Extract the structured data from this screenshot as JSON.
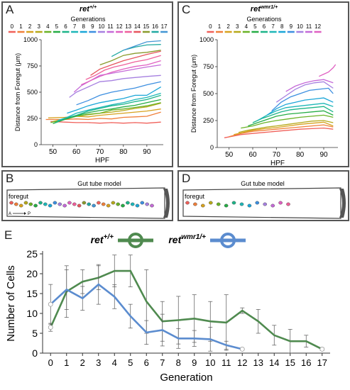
{
  "panels": {
    "A": {
      "letter": "A",
      "genotype_base": "ret",
      "genotype_sup": "+/+",
      "legend_title": "Generations"
    },
    "B": {
      "letter": "B",
      "model_title": "Gut tube model",
      "foregut_label": "foregut",
      "axis_a": "A",
      "axis_p": "P"
    },
    "C": {
      "letter": "C",
      "genotype_base": "ret",
      "genotype_sup": "wmr1/+",
      "legend_title": "Generations"
    },
    "D": {
      "letter": "D",
      "model_title": "Gut tube model",
      "foregut_label": "foregut"
    },
    "E": {
      "letter": "E"
    }
  },
  "colors": {
    "generations": [
      "#f0605a",
      "#f07f3a",
      "#d7a21e",
      "#b6a91b",
      "#6ab327",
      "#26ad45",
      "#1db589",
      "#1eb7b8",
      "#1ba6d8",
      "#3d8fe0",
      "#a680e0",
      "#c56ad8",
      "#e060c2",
      "#ef5f9a",
      "#e6555d",
      "#8a9b2c",
      "#21a9a2",
      "#4396d4"
    ],
    "ret_wt": "#4f8a4f",
    "ret_mut": "#5b8ccf"
  },
  "chart_data": [
    {
      "id": "A",
      "type": "line",
      "title": "ret+/+",
      "xlabel": "HPF",
      "ylabel": "Distance from Foregut (μm)",
      "xlim": [
        45,
        97
      ],
      "ylim": [
        0,
        1000
      ],
      "xticks": [
        50,
        60,
        70,
        80,
        90
      ],
      "yticks": [
        0,
        250,
        500,
        750,
        1000
      ],
      "legend_title": "Generations",
      "legend_labels": [
        "0",
        "1",
        "2",
        "3",
        "4",
        "5",
        "6",
        "7",
        "8",
        "9",
        "10",
        "11",
        "12",
        "13",
        "14",
        "15",
        "16",
        "17"
      ],
      "series": [
        {
          "gen": 0,
          "x": [
            49,
            55,
            60,
            65,
            70,
            75,
            80,
            85,
            90,
            96
          ],
          "y": [
            220,
            215,
            210,
            210,
            205,
            210,
            205,
            210,
            205,
            215
          ]
        },
        {
          "gen": 1,
          "x": [
            47,
            55,
            60,
            65,
            70,
            75,
            80,
            85,
            90,
            96
          ],
          "y": [
            240,
            240,
            245,
            240,
            250,
            245,
            260,
            265,
            270,
            310
          ]
        },
        {
          "gen": 2,
          "x": [
            48,
            55,
            60,
            65,
            70,
            75,
            80,
            85,
            90,
            96
          ],
          "y": [
            255,
            260,
            270,
            265,
            280,
            290,
            300,
            310,
            320,
            340
          ]
        },
        {
          "gen": 3,
          "x": [
            50,
            55,
            60,
            65,
            70,
            75,
            80,
            85,
            90,
            96
          ],
          "y": [
            220,
            245,
            270,
            285,
            300,
            310,
            325,
            345,
            360,
            395
          ]
        },
        {
          "gen": 4,
          "x": [
            49,
            55,
            60,
            65,
            70,
            75,
            80,
            85,
            90,
            96
          ],
          "y": [
            210,
            240,
            270,
            290,
            300,
            330,
            340,
            355,
            370,
            400
          ]
        },
        {
          "gen": 5,
          "x": [
            50,
            55,
            60,
            65,
            70,
            75,
            80,
            85,
            90,
            96
          ],
          "y": [
            200,
            240,
            275,
            305,
            325,
            340,
            360,
            375,
            400,
            430
          ]
        },
        {
          "gen": 6,
          "x": [
            51,
            55,
            60,
            65,
            70,
            75,
            80,
            85,
            90,
            96
          ],
          "y": [
            210,
            250,
            280,
            320,
            345,
            370,
            385,
            410,
            430,
            470
          ]
        },
        {
          "gen": 7,
          "x": [
            52,
            56,
            60,
            65,
            70,
            75,
            80,
            85,
            90,
            96
          ],
          "y": [
            230,
            260,
            300,
            330,
            355,
            380,
            400,
            430,
            450,
            490
          ]
        },
        {
          "gen": 8,
          "x": [
            56,
            60,
            65,
            70,
            75,
            80,
            85,
            90,
            96
          ],
          "y": [
            300,
            330,
            370,
            400,
            420,
            440,
            470,
            470,
            550
          ]
        },
        {
          "gen": 9,
          "x": [
            60,
            65,
            70,
            75,
            80,
            85,
            90,
            96
          ],
          "y": [
            380,
            420,
            470,
            500,
            520,
            540,
            570,
            600
          ]
        },
        {
          "gen": 10,
          "x": [
            57,
            60,
            65,
            70,
            75,
            80,
            85,
            90,
            96
          ],
          "y": [
            450,
            500,
            550,
            600,
            610,
            630,
            640,
            650,
            660
          ]
        },
        {
          "gen": 11,
          "x": [
            59,
            62,
            66,
            70,
            75,
            80,
            85,
            90,
            96
          ],
          "y": [
            500,
            560,
            610,
            660,
            680,
            700,
            720,
            740,
            760
          ]
        },
        {
          "gen": 12,
          "x": [
            62,
            65,
            70,
            75,
            80,
            85,
            90,
            96
          ],
          "y": [
            570,
            600,
            650,
            690,
            720,
            745,
            760,
            800
          ]
        },
        {
          "gen": 13,
          "x": [
            64,
            68,
            72,
            76,
            80,
            85,
            90,
            96
          ],
          "y": [
            620,
            660,
            710,
            740,
            760,
            790,
            810,
            850
          ]
        },
        {
          "gen": 14,
          "x": [
            66,
            70,
            75,
            80,
            85,
            90,
            96
          ],
          "y": [
            660,
            720,
            760,
            800,
            830,
            860,
            890
          ]
        },
        {
          "gen": 15,
          "x": [
            70,
            75,
            80,
            85,
            90,
            96
          ],
          "y": [
            760,
            800,
            850,
            870,
            880,
            900
          ]
        },
        {
          "gen": 16,
          "x": [
            75,
            80,
            85,
            90,
            96
          ],
          "y": [
            840,
            900,
            930,
            950,
            955
          ]
        },
        {
          "gen": 17,
          "x": [
            80,
            85,
            90,
            96
          ],
          "y": [
            900,
            940,
            980,
            990
          ]
        }
      ]
    },
    {
      "id": "C",
      "type": "line",
      "title": "retwmr1/+",
      "xlabel": "HPF",
      "ylabel": "Distance from Foregut (μm)",
      "xlim": [
        45,
        96
      ],
      "ylim": [
        0,
        1000
      ],
      "xticks": [
        50,
        60,
        70,
        80,
        90
      ],
      "yticks": [
        0,
        250,
        500,
        750,
        1000
      ],
      "legend_title": "Generations",
      "legend_labels": [
        "0",
        "1",
        "2",
        "3",
        "4",
        "5",
        "6",
        "7",
        "8",
        "9",
        "10",
        "11",
        "12"
      ],
      "series": [
        {
          "gen": 0,
          "x": [
            48,
            55,
            60,
            65,
            70,
            75,
            80,
            85,
            90,
            94
          ],
          "y": [
            90,
            120,
            130,
            140,
            150,
            160,
            170,
            175,
            180,
            170
          ]
        },
        {
          "gen": 1,
          "x": [
            50,
            55,
            60,
            65,
            70,
            75,
            80,
            85,
            90,
            94
          ],
          "y": [
            100,
            130,
            150,
            160,
            170,
            180,
            190,
            200,
            210,
            190
          ]
        },
        {
          "gen": 2,
          "x": [
            52,
            56,
            60,
            65,
            70,
            75,
            80,
            85,
            90,
            94
          ],
          "y": [
            120,
            140,
            160,
            175,
            185,
            200,
            215,
            225,
            235,
            200
          ]
        },
        {
          "gen": 3,
          "x": [
            54,
            58,
            62,
            66,
            70,
            75,
            80,
            85,
            90,
            94
          ],
          "y": [
            140,
            160,
            175,
            190,
            200,
            215,
            230,
            245,
            250,
            230
          ]
        },
        {
          "gen": 4,
          "x": [
            55,
            60,
            65,
            70,
            75,
            80,
            85,
            90,
            94
          ],
          "y": [
            180,
            200,
            230,
            250,
            265,
            280,
            290,
            300,
            280
          ]
        },
        {
          "gen": 5,
          "x": [
            58,
            62,
            66,
            70,
            75,
            80,
            85,
            90,
            94
          ],
          "y": [
            200,
            230,
            260,
            290,
            310,
            320,
            330,
            340,
            300
          ]
        },
        {
          "gen": 6,
          "x": [
            60,
            64,
            68,
            72,
            76,
            80,
            85,
            90,
            94
          ],
          "y": [
            230,
            270,
            300,
            330,
            350,
            360,
            370,
            380,
            330
          ]
        },
        {
          "gen": 7,
          "x": [
            62,
            66,
            70,
            74,
            78,
            82,
            86,
            90,
            94
          ],
          "y": [
            250,
            300,
            340,
            370,
            380,
            390,
            400,
            410,
            380
          ]
        },
        {
          "gen": 8,
          "x": [
            66,
            70,
            74,
            78,
            82,
            86,
            90,
            94
          ],
          "y": [
            300,
            360,
            400,
            420,
            440,
            450,
            460,
            420
          ]
        },
        {
          "gen": 9,
          "x": [
            68,
            72,
            76,
            80,
            84,
            88,
            92,
            94
          ],
          "y": [
            340,
            420,
            470,
            500,
            530,
            540,
            550,
            500
          ]
        },
        {
          "gen": 10,
          "x": [
            70,
            74,
            78,
            82,
            86,
            90,
            94
          ],
          "y": [
            420,
            480,
            540,
            580,
            600,
            610,
            550
          ]
        },
        {
          "gen": 11,
          "x": [
            74,
            78,
            82,
            86,
            90,
            94
          ],
          "y": [
            520,
            570,
            600,
            620,
            630,
            600
          ]
        },
        {
          "gen": 12,
          "x": [
            88,
            90,
            92,
            94,
            95
          ],
          "y": [
            660,
            680,
            700,
            740,
            770
          ]
        }
      ]
    },
    {
      "id": "E",
      "type": "line",
      "xlabel": "Generation",
      "ylabel": "Number of Cells",
      "xlim": [
        -0.5,
        17.5
      ],
      "ylim": [
        0,
        25
      ],
      "xticks": [
        0,
        1,
        2,
        3,
        4,
        5,
        6,
        7,
        8,
        9,
        10,
        11,
        12,
        13,
        14,
        15,
        16,
        17
      ],
      "yticks": [
        0,
        5,
        10,
        15,
        20,
        25
      ],
      "legend": [
        {
          "base": "ret",
          "sup": "+/+"
        },
        {
          "base": "ret",
          "sup": "wmr1/+"
        }
      ],
      "series": [
        {
          "name": "ret+/+",
          "x": [
            0,
            1,
            2,
            3,
            4,
            5,
            6,
            7,
            8,
            9,
            10,
            11,
            12,
            13,
            14,
            15,
            16,
            17
          ],
          "y": [
            6.5,
            15.5,
            18,
            19,
            20.7,
            20.7,
            13,
            8,
            8.3,
            8.7,
            8,
            7.7,
            10.7,
            8,
            4.5,
            3,
            3,
            1
          ],
          "err": [
            1,
            6.5,
            3,
            3,
            4,
            4,
            8,
            5,
            6,
            6,
            5,
            7,
            0.7,
            3,
            2.5,
            3,
            1.5,
            0.3
          ]
        },
        {
          "name": "retwmr1/+",
          "x": [
            0,
            1,
            2,
            3,
            4,
            5,
            6,
            7,
            8,
            9,
            10,
            11,
            12
          ],
          "y": [
            12.3,
            16,
            13.8,
            17.3,
            14.2,
            9.3,
            5.2,
            5.8,
            3.7,
            3.7,
            3.5,
            2,
            1
          ],
          "err": [
            5,
            5,
            3,
            5,
            3,
            3,
            3,
            4,
            2.5,
            2,
            3,
            1,
            0.2
          ]
        }
      ]
    }
  ]
}
